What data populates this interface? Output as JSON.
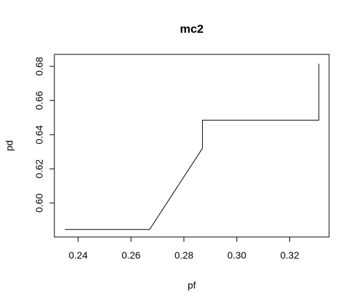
{
  "chart_data": {
    "type": "line",
    "title": "mc2",
    "xlabel": "pf",
    "ylabel": "pd",
    "xlim": [
      0.231,
      0.3349
    ],
    "ylim": [
      0.5801,
      0.687
    ],
    "x_ticks": [
      0.24,
      0.26,
      0.28,
      0.3,
      0.32
    ],
    "x_tick_labels": [
      "0.24",
      "0.26",
      "0.28",
      "0.30",
      "0.32"
    ],
    "y_ticks": [
      0.6,
      0.62,
      0.64,
      0.66,
      0.68
    ],
    "y_tick_labels": [
      "0.60",
      "0.62",
      "0.64",
      "0.66",
      "0.68"
    ],
    "grid": false,
    "series": [
      {
        "x": [
          0.235,
          0.267,
          0.287,
          0.287,
          0.331,
          0.331
        ],
        "y": [
          0.5845,
          0.5845,
          0.632,
          0.6485,
          0.6485,
          0.6815
        ]
      }
    ]
  }
}
